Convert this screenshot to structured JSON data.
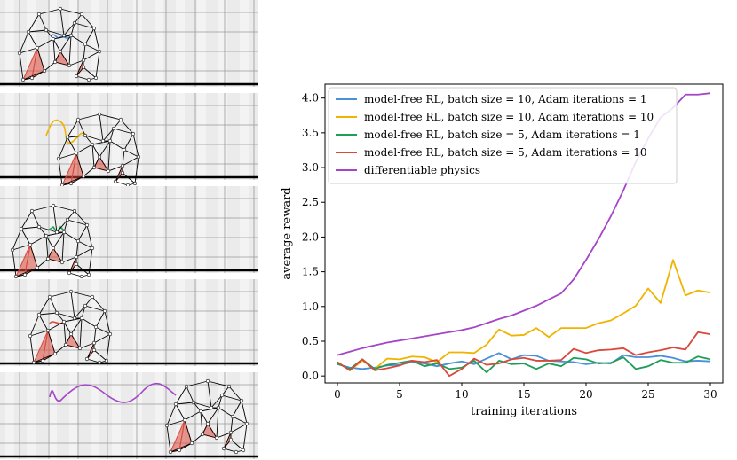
{
  "colors": {
    "model_free_b10_a1": "#4a90d9",
    "model_free_b10_a10": "#f0b400",
    "model_free_b5_a1": "#1f9e5a",
    "model_free_b5_a10": "#d9483b",
    "differentiable_physics": "#a545c7",
    "panel_bg": "#ebebeb",
    "panel_grid": "#9a9a9a",
    "ground": "#000000",
    "robot_edge": "#000000",
    "muscle": "#d9483b"
  },
  "left_panels": {
    "panels": [
      {
        "name": "model-free RL, batch size = 10, Adam iterations = 1",
        "trajectory_color": "#4a90d9"
      },
      {
        "name": "model-free RL, batch size = 10, Adam iterations = 10",
        "trajectory_color": "#f0b400"
      },
      {
        "name": "model-free RL, batch size = 5, Adam iterations = 1",
        "trajectory_color": "#1f9e5a"
      },
      {
        "name": "model-free RL, batch size = 5, Adam iterations = 10",
        "trajectory_color": "#d9483b"
      },
      {
        "name": "differentiable physics",
        "trajectory_color": "#a545c7"
      }
    ]
  },
  "chart_data": {
    "type": "line",
    "title": "",
    "xlabel": "training iterations",
    "ylabel": "average reward",
    "xlim": [
      -1,
      31
    ],
    "ylim": [
      -0.1,
      4.2
    ],
    "xticks": [
      0,
      5,
      10,
      15,
      20,
      25,
      30
    ],
    "xtick_labels": [
      "0",
      "5",
      "10",
      "15",
      "20",
      "25",
      "30"
    ],
    "yticks": [
      0.0,
      0.5,
      1.0,
      1.5,
      2.0,
      2.5,
      3.0,
      3.5,
      4.0
    ],
    "ytick_labels": [
      "0.0",
      "0.5",
      "1.0",
      "1.5",
      "2.0",
      "2.5",
      "3.0",
      "3.5",
      "4.0"
    ],
    "grid": false,
    "legend_position": "top-left",
    "x": [
      0,
      1,
      2,
      3,
      4,
      5,
      6,
      7,
      8,
      9,
      10,
      11,
      12,
      13,
      14,
      15,
      16,
      17,
      18,
      19,
      20,
      21,
      22,
      23,
      24,
      25,
      26,
      27,
      28,
      29,
      30
    ],
    "series": [
      {
        "name": "model-free RL, batch size = 10, Adam iterations = 1",
        "color": "#4a90d9",
        "values": [
          0.17,
          0.12,
          0.1,
          0.12,
          0.15,
          0.16,
          0.2,
          0.18,
          0.14,
          0.18,
          0.21,
          0.17,
          0.25,
          0.33,
          0.24,
          0.3,
          0.29,
          0.22,
          0.21,
          0.2,
          0.17,
          0.19,
          0.18,
          0.3,
          0.27,
          0.27,
          0.29,
          0.26,
          0.21,
          0.22,
          0.21
        ]
      },
      {
        "name": "model-free RL, batch size = 10, Adam iterations = 10",
        "color": "#f0b400",
        "values": [
          0.2,
          0.08,
          0.22,
          0.1,
          0.25,
          0.24,
          0.28,
          0.27,
          0.2,
          0.34,
          0.34,
          0.33,
          0.45,
          0.67,
          0.58,
          0.59,
          0.69,
          0.56,
          0.69,
          0.69,
          0.69,
          0.76,
          0.8,
          0.9,
          1.01,
          1.26,
          1.05,
          1.67,
          1.16,
          1.23,
          1.2
        ]
      },
      {
        "name": "model-free RL, batch size = 5, Adam iterations = 1",
        "color": "#1f9e5a",
        "values": [
          0.18,
          0.1,
          0.24,
          0.1,
          0.16,
          0.19,
          0.22,
          0.14,
          0.18,
          0.1,
          0.12,
          0.22,
          0.05,
          0.22,
          0.17,
          0.18,
          0.1,
          0.18,
          0.14,
          0.26,
          0.24,
          0.18,
          0.19,
          0.27,
          0.1,
          0.14,
          0.23,
          0.19,
          0.19,
          0.28,
          0.24
        ]
      },
      {
        "name": "model-free RL, batch size = 5, Adam iterations = 10",
        "color": "#d9483b",
        "values": [
          0.2,
          0.08,
          0.24,
          0.08,
          0.11,
          0.15,
          0.22,
          0.2,
          0.23,
          0.0,
          0.1,
          0.25,
          0.16,
          0.18,
          0.24,
          0.26,
          0.22,
          0.22,
          0.23,
          0.39,
          0.33,
          0.37,
          0.38,
          0.4,
          0.3,
          0.34,
          0.37,
          0.41,
          0.38,
          0.63,
          0.6
        ]
      },
      {
        "name": "differentiable physics",
        "color": "#a545c7",
        "values": [
          0.3,
          0.35,
          0.4,
          0.44,
          0.48,
          0.51,
          0.54,
          0.57,
          0.6,
          0.63,
          0.66,
          0.7,
          0.76,
          0.82,
          0.87,
          0.94,
          1.01,
          1.1,
          1.19,
          1.39,
          1.67,
          1.97,
          2.3,
          2.67,
          3.08,
          3.42,
          3.72,
          3.86,
          4.05,
          4.05,
          4.07
        ]
      }
    ]
  }
}
